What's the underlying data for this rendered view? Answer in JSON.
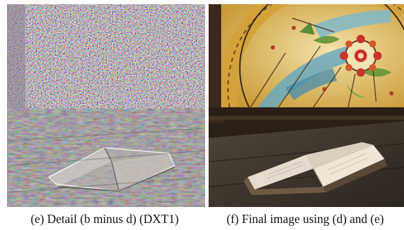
{
  "figure": {
    "panels": [
      {
        "id": "e",
        "caption": "(e) Detail (b minus d) (DXT1)"
      },
      {
        "id": "f",
        "caption": "(f) Final image using (d) and (e)"
      }
    ]
  },
  "colors": {
    "detail_base": "#6e6a68",
    "stained_glass_yellow": "#e8b23a",
    "stained_glass_blue": "#5f9fb7",
    "stained_glass_red": "#c8342a",
    "wood_dark": "#2e261f"
  }
}
